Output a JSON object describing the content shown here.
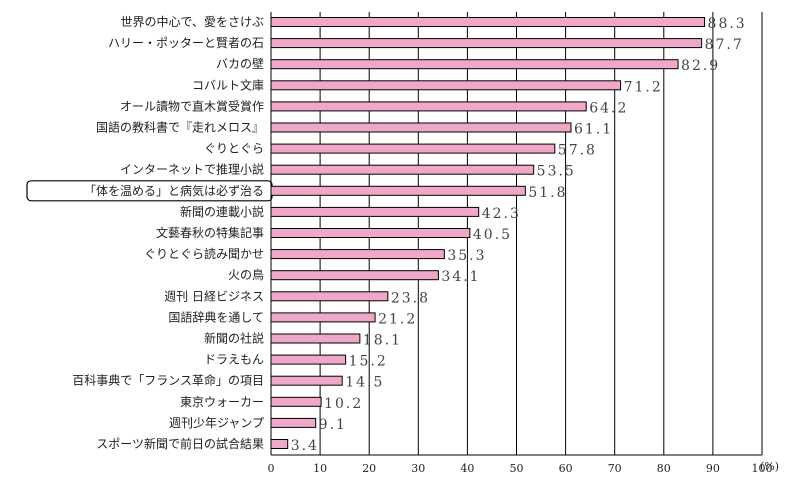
{
  "chart_data": {
    "type": "bar",
    "orientation": "horizontal",
    "categories": [
      "世界の中心で、愛をさけぶ",
      "ハリー・ポッターと賢者の石",
      "バカの壁",
      "コバルト文庫",
      "オール讀物で直木賞受賞作",
      "国語の教科書で『走れメロス』",
      "ぐりとぐら",
      "インターネットで推理小説",
      "「体を温める」と病気は必ず治る",
      "新聞の連載小説",
      "文藝春秋の特集記事",
      "ぐりとぐら読み聞かせ",
      "火の鳥",
      "週刊 日経ビジネス",
      "国語辞典を通して",
      "新聞の社説",
      "ドラえもん",
      "百科事典で「フランス革命」の項目",
      "東京ウォーカー",
      "週刊少年ジャンプ",
      "スポーツ新聞で前日の試合結果"
    ],
    "values": [
      88.3,
      87.7,
      82.9,
      71.2,
      64.2,
      61.1,
      57.8,
      53.5,
      51.8,
      42.3,
      40.5,
      35.3,
      34.1,
      23.8,
      21.2,
      18.1,
      15.2,
      14.5,
      10.2,
      9.1,
      3.4
    ],
    "value_labels": [
      "88.3",
      "87.7",
      "82.9",
      "71.2",
      "64.2",
      "61.1",
      "57.8",
      "53.5",
      "51.8",
      "42.3",
      "40.5",
      "35.3",
      "34.1",
      "23.8",
      "21.2",
      "18.1",
      "15.2",
      "14.5",
      "10.2",
      "9.1",
      "3.4"
    ],
    "highlighted_index": 8,
    "xlim": [
      0,
      100
    ],
    "x_ticks": [
      0,
      10,
      20,
      30,
      40,
      50,
      60,
      70,
      80,
      90,
      100
    ],
    "x_unit": "(%)",
    "grid": true,
    "bar_color": "#f0a8c8",
    "title": "",
    "xlabel": "",
    "ylabel": ""
  }
}
